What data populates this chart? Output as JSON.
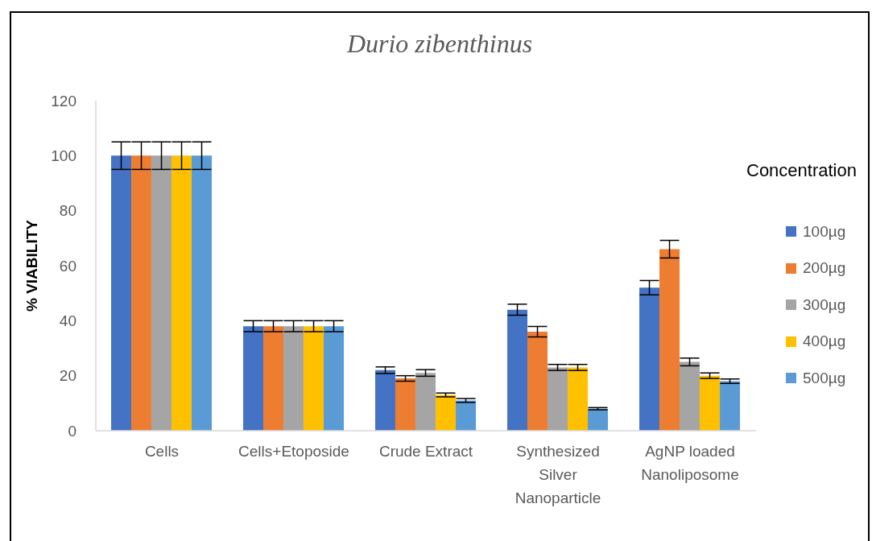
{
  "chart_data": {
    "type": "bar",
    "title": "Durio zibenthinus",
    "ylabel": "% VIABILITY",
    "legend_title": "Concentration",
    "legend": "right",
    "categories": [
      "Cells",
      "Cells+Etoposide",
      "Crude Extract",
      "Synthesized Silver Nanoparticle",
      "AgNP loaded Nanoliposome"
    ],
    "ylim": [
      0,
      120
    ],
    "yticks": [
      0,
      20,
      40,
      60,
      80,
      100,
      120
    ],
    "series": [
      {
        "name": "100µg",
        "color": "#4472c4",
        "values": [
          100,
          38,
          22,
          44,
          52
        ],
        "errors": [
          5,
          2,
          1.2,
          2,
          2.6
        ]
      },
      {
        "name": "200µg",
        "color": "#ed7d31",
        "values": [
          100,
          38,
          19,
          36,
          66
        ],
        "errors": [
          5,
          2,
          1,
          1.9,
          3.2
        ]
      },
      {
        "name": "300µg",
        "color": "#a5a5a5",
        "values": [
          100,
          38,
          21,
          23,
          25
        ],
        "errors": [
          5,
          2,
          1.2,
          1.1,
          1.4
        ]
      },
      {
        "name": "400µg",
        "color": "#ffc000",
        "values": [
          100,
          38,
          13,
          23,
          20
        ],
        "errors": [
          5,
          2,
          0.7,
          1.1,
          1
        ]
      },
      {
        "name": "500µg",
        "color": "#5b9bd5",
        "values": [
          100,
          38,
          11,
          8,
          18
        ],
        "errors": [
          5,
          2,
          0.7,
          0.4,
          0.8
        ]
      }
    ]
  }
}
